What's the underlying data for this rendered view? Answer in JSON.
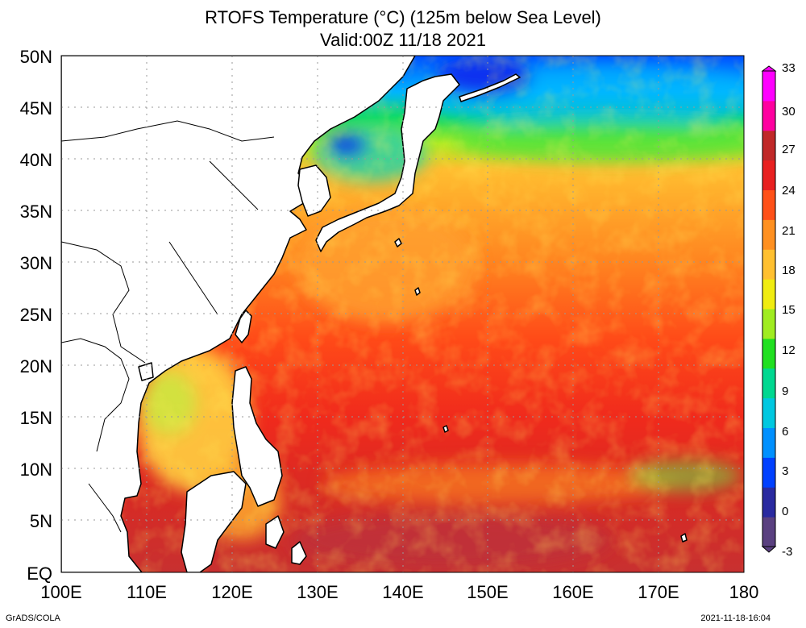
{
  "title": "RTOFS Temperature (°C) (125m below Sea Level)",
  "subtitle": "Valid:00Z 11/18 2021",
  "footer_left": "GrADS/COLA",
  "footer_right": "2021-11-18-16:04",
  "y_ticks": [
    "50N",
    "45N",
    "40N",
    "35N",
    "30N",
    "25N",
    "20N",
    "15N",
    "10N",
    "5N",
    "EQ"
  ],
  "x_ticks": [
    "100E",
    "110E",
    "120E",
    "130E",
    "140E",
    "150E",
    "160E",
    "170E",
    "180"
  ],
  "colorbar_labels": [
    "33",
    "30",
    "27",
    "24",
    "21",
    "18",
    "15",
    "12",
    "9",
    "6",
    "3",
    "0",
    "-3"
  ],
  "colorbar_colors": [
    "#5a4080",
    "#2a2aa0",
    "#0040ff",
    "#0090ff",
    "#00c8e0",
    "#00d890",
    "#20e020",
    "#a0ec20",
    "#f0ec10",
    "#ffc030",
    "#ff9020",
    "#ff5018",
    "#e82020",
    "#c02828",
    "#ff00a0",
    "#ff00ff"
  ],
  "lat_range": [
    0,
    50
  ],
  "lon_range": [
    100,
    180
  ],
  "land_color": "#ffffff",
  "grid": true
}
